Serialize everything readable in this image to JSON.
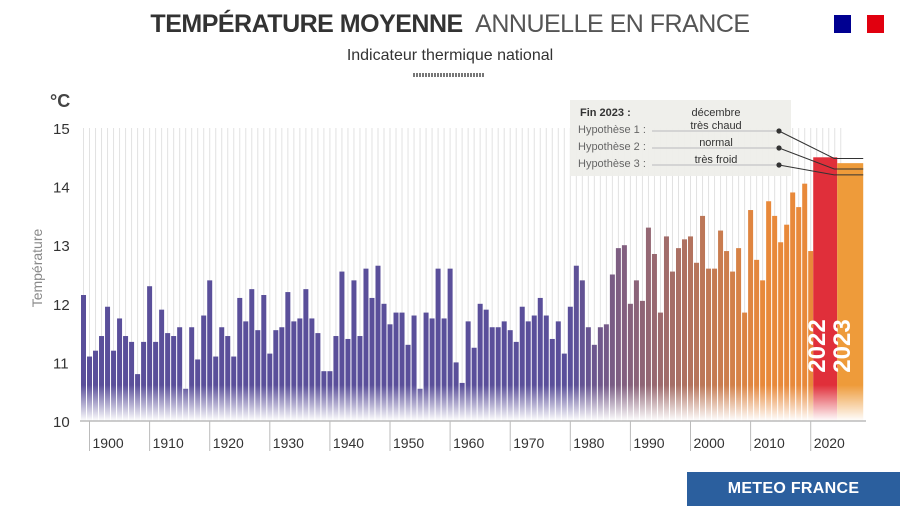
{
  "header": {
    "title_bold": "TEMPÉRATURE MOYENNE",
    "title_light": "ANNUELLE EN FRANCE",
    "subtitle": "Indicateur thermique national"
  },
  "brand": {
    "meteo_label": "METEO FRANCE",
    "meteo_color": "#2b5f9e"
  },
  "colors": {
    "cool": "#5a4f9a",
    "warm": "#e8893a",
    "year_2022": "#e02f3a",
    "year_2023": "#ee9b3a",
    "grid": "#e2e2e2"
  },
  "chart_data": {
    "type": "bar",
    "title": "Température moyenne annuelle en France",
    "unit_label": "°C",
    "ylabel": "Température",
    "ylim": [
      10,
      15
    ],
    "yticks": [
      10,
      11,
      12,
      13,
      14,
      15
    ],
    "xticks": [
      1900,
      1910,
      1920,
      1930,
      1940,
      1950,
      1960,
      1970,
      1980,
      1990,
      2000,
      2010,
      2020
    ],
    "x_start": 1899,
    "values": [
      12.15,
      11.1,
      11.2,
      11.45,
      11.95,
      11.2,
      11.75,
      11.45,
      11.35,
      10.8,
      11.35,
      12.3,
      11.35,
      11.9,
      11.5,
      11.45,
      11.6,
      10.55,
      11.6,
      11.05,
      11.8,
      12.4,
      11.1,
      11.6,
      11.45,
      11.1,
      12.1,
      11.7,
      12.25,
      11.55,
      12.15,
      11.15,
      11.55,
      11.6,
      12.2,
      11.7,
      11.75,
      12.25,
      11.75,
      11.5,
      10.85,
      10.85,
      11.45,
      12.55,
      11.4,
      12.4,
      11.45,
      12.6,
      12.1,
      12.65,
      12.0,
      11.65,
      11.85,
      11.85,
      11.3,
      11.8,
      10.55,
      11.85,
      11.75,
      12.6,
      11.75,
      12.6,
      11.0,
      10.65,
      11.7,
      11.25,
      12.0,
      11.9,
      11.6,
      11.6,
      11.7,
      11.55,
      11.35,
      11.95,
      11.7,
      11.8,
      12.1,
      11.8,
      11.4,
      11.7,
      11.15,
      11.95,
      12.65,
      12.4,
      11.6,
      11.3,
      11.6,
      11.65,
      12.5,
      12.95,
      13.0,
      12.0,
      12.4,
      12.05,
      13.3,
      12.85,
      11.85,
      13.15,
      12.55,
      12.95,
      13.1,
      13.15,
      12.7,
      13.5,
      12.6,
      12.6,
      13.25,
      12.9,
      12.55,
      12.95,
      11.85,
      13.6,
      12.75,
      12.4,
      13.75,
      13.5,
      13.05,
      13.35,
      13.9,
      13.65,
      14.05,
      12.9,
      14.5
    ],
    "year_2023": 14.4,
    "fin_2023_label": "Fin 2023 :",
    "fin_2023_value": "décembre",
    "hypotheses": [
      {
        "label": "Hypothèse 1 :",
        "value": "très chaud",
        "temp": 14.48
      },
      {
        "label": "Hypothèse 2 :",
        "value": "normal",
        "temp": 14.3
      },
      {
        "label": "Hypothèse 3 :",
        "value": "très froid",
        "temp": 14.2
      }
    ],
    "highlight_labels": [
      "2022",
      "2023"
    ]
  }
}
